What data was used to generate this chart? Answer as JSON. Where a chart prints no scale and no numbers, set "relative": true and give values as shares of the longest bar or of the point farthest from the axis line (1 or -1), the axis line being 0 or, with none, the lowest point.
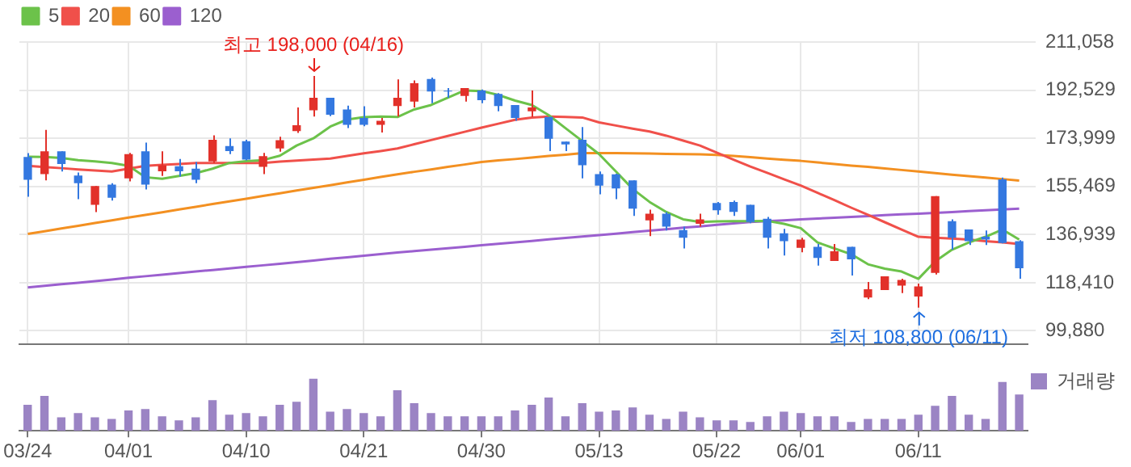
{
  "chart_data": [
    {
      "type": "candlestick",
      "categories": [
        null,
        null,
        null,
        null,
        null,
        null,
        null,
        null,
        null,
        null,
        null,
        null,
        null,
        null,
        null,
        null,
        null,
        null,
        null,
        null,
        null,
        null,
        null,
        null,
        null,
        null,
        null,
        null,
        null,
        null,
        null,
        null,
        null,
        null,
        null,
        null,
        null,
        null,
        null,
        null,
        null,
        null,
        null,
        null,
        null,
        null,
        null,
        null,
        null,
        null,
        null,
        null,
        null,
        null,
        null,
        null,
        null,
        null,
        null,
        null
      ],
      "ohlc": [
        [
          166800,
          168300,
          151500,
          158000
        ],
        [
          160200,
          177200,
          157800,
          169000
        ],
        [
          169000,
          169000,
          161200,
          164100
        ],
        [
          159700,
          160800,
          150600,
          156700
        ],
        [
          148400,
          155600,
          145600,
          155600
        ],
        [
          156200,
          156700,
          150000,
          151100
        ],
        [
          158600,
          168400,
          157400,
          167900
        ],
        [
          169000,
          172300,
          154300,
          156200
        ],
        [
          161300,
          169000,
          159500,
          163600
        ],
        [
          163200,
          166000,
          159300,
          161300
        ],
        [
          162300,
          164900,
          156700,
          158000
        ],
        [
          165100,
          175100,
          164500,
          173400
        ],
        [
          171000,
          174000,
          167900,
          169100
        ],
        [
          172900,
          173400,
          165500,
          165800
        ],
        [
          163000,
          168400,
          160200,
          167100
        ],
        [
          170100,
          174600,
          168800,
          173300
        ],
        [
          176800,
          185900,
          176100,
          179000
        ],
        [
          184800,
          198000,
          182400,
          189600
        ],
        [
          189600,
          189600,
          182500,
          183100
        ],
        [
          185100,
          186600,
          177900,
          179200
        ],
        [
          181800,
          186300,
          178600,
          179200
        ],
        [
          179200,
          181800,
          176200,
          180700
        ],
        [
          186400,
          196700,
          182400,
          189600
        ],
        [
          188100,
          196300,
          185900,
          195200
        ],
        [
          196800,
          197400,
          187500,
          192000
        ],
        [
          192300,
          193300,
          189600,
          192000
        ],
        [
          190300,
          193300,
          188100,
          193300
        ],
        [
          192400,
          192800,
          187500,
          188700
        ],
        [
          191100,
          191400,
          184400,
          186400
        ],
        [
          186800,
          186800,
          180700,
          181800
        ],
        [
          184400,
          192400,
          182200,
          185900
        ],
        [
          182200,
          182200,
          169100,
          173800
        ],
        [
          172700,
          172700,
          169100,
          171600
        ],
        [
          173400,
          178300,
          158600,
          163600
        ],
        [
          160200,
          161200,
          152400,
          155800
        ],
        [
          160100,
          160400,
          150600,
          154700
        ],
        [
          157800,
          157800,
          144100,
          146900
        ],
        [
          142400,
          146500,
          136300,
          145000
        ],
        [
          145000,
          145600,
          138500,
          140000
        ],
        [
          138700,
          140000,
          131600,
          135700
        ],
        [
          141100,
          145000,
          140000,
          142800
        ],
        [
          149100,
          149500,
          144600,
          146300
        ],
        [
          149500,
          150000,
          144100,
          145700
        ],
        [
          148400,
          148400,
          141300,
          141800
        ],
        [
          143000,
          143700,
          131600,
          135700
        ],
        [
          137400,
          139100,
          128900,
          134400
        ],
        [
          131800,
          135700,
          130100,
          135000
        ],
        [
          132200,
          133300,
          125000,
          127900
        ],
        [
          126800,
          133300,
          126800,
          130500
        ],
        [
          132200,
          132200,
          121200,
          127400
        ],
        [
          112700,
          118700,
          112100,
          115900
        ],
        [
          115600,
          120900,
          115600,
          120900
        ],
        [
          117300,
          119900,
          114400,
          119500
        ],
        [
          113100,
          118100,
          108800,
          117000
        ],
        [
          122200,
          151700,
          121600,
          151700
        ],
        [
          142100,
          142800,
          131100,
          135700
        ],
        [
          138900,
          138900,
          132900,
          134400
        ],
        [
          136100,
          138500,
          132900,
          135000
        ],
        [
          158200,
          158900,
          133500,
          133700
        ],
        [
          134400,
          134800,
          119900,
          124000
        ]
      ],
      "colors": [
        "#3478e0",
        "#e2312a",
        "#3478e0",
        "#3478e0",
        "#e2312a",
        "#3478e0",
        "#e2312a",
        "#3478e0",
        "#e2312a",
        "#3478e0",
        "#3478e0",
        "#e2312a",
        "#3478e0",
        "#3478e0",
        "#e2312a",
        "#e2312a",
        "#e2312a",
        "#e2312a",
        "#3478e0",
        "#3478e0",
        "#3478e0",
        "#e2312a",
        "#e2312a",
        "#e2312a",
        "#3478e0",
        "#3478e0",
        "#e2312a",
        "#3478e0",
        "#3478e0",
        "#3478e0",
        "#e2312a",
        "#3478e0",
        "#3478e0",
        "#3478e0",
        "#3478e0",
        "#3478e0",
        "#3478e0",
        "#e2312a",
        "#3478e0",
        "#3478e0",
        "#e2312a",
        "#3478e0",
        "#3478e0",
        "#3478e0",
        "#3478e0",
        "#3478e0",
        "#e2312a",
        "#3478e0",
        "#e2312a",
        "#3478e0",
        "#e2312a",
        "#e2312a",
        "#e2312a",
        "#e2312a",
        "#e2312a",
        "#3478e0",
        "#3478e0",
        "#3478e0",
        "#3478e0",
        "#3478e0"
      ],
      "series": [
        {
          "name": "5",
          "type": "line",
          "color": "#6cc24a",
          "values": [
            166900,
            166800,
            166400,
            165600,
            165100,
            164500,
            163400,
            159000,
            158400,
            159500,
            160600,
            162300,
            164500,
            165200,
            165600,
            167300,
            171200,
            174000,
            178500,
            181200,
            182100,
            182400,
            182200,
            185100,
            186800,
            189600,
            192400,
            192200,
            190700,
            188500,
            186800,
            182900,
            177900,
            172900,
            167900,
            161200,
            154500,
            149500,
            145600,
            142800,
            141800,
            142000,
            142100,
            142100,
            142200,
            141100,
            139400,
            133900,
            131600,
            129400,
            125500,
            123800,
            122700,
            119900,
            126600,
            131100,
            133900,
            136100,
            138900,
            135000
          ]
        },
        {
          "name": "20",
          "type": "line",
          "color": "#f0504a",
          "values": [
            163400,
            162900,
            162500,
            162000,
            161600,
            161200,
            162300,
            163400,
            163800,
            164100,
            164500,
            164500,
            164500,
            164500,
            164500,
            165000,
            165400,
            165800,
            166200,
            167200,
            168200,
            169100,
            170100,
            171700,
            173300,
            174900,
            176500,
            178100,
            179600,
            181100,
            182000,
            182400,
            182200,
            182000,
            180100,
            178900,
            177700,
            176600,
            175000,
            173100,
            171200,
            168500,
            165800,
            163100,
            160700,
            158200,
            155800,
            153000,
            150200,
            147300,
            144500,
            141700,
            138900,
            136100,
            135700,
            135400,
            135000,
            134400,
            133900,
            133300
          ]
        },
        {
          "name": "60",
          "type": "line",
          "color": "#f39021",
          "values": [
            137200,
            138200,
            139300,
            140300,
            141400,
            142400,
            143500,
            144500,
            145500,
            146600,
            147600,
            148700,
            149700,
            150700,
            151800,
            152800,
            153900,
            154900,
            155900,
            157000,
            158000,
            159100,
            160100,
            161100,
            162000,
            163000,
            163900,
            164900,
            165500,
            166000,
            166600,
            167200,
            167700,
            168300,
            168300,
            168300,
            168200,
            168100,
            168000,
            167900,
            167800,
            167600,
            167200,
            166700,
            166200,
            165700,
            165300,
            164700,
            164100,
            163500,
            163000,
            162400,
            161800,
            161200,
            160600,
            160000,
            159400,
            158900,
            158300,
            157700
          ]
        },
        {
          "name": "120",
          "type": "line",
          "color": "#9b5fcf",
          "values": [
            116600,
            117200,
            117800,
            118400,
            119000,
            119600,
            120300,
            120900,
            121500,
            122100,
            122700,
            123300,
            123900,
            124500,
            125100,
            125700,
            126300,
            126900,
            127600,
            128200,
            128800,
            129400,
            130000,
            130600,
            131100,
            131700,
            132200,
            132800,
            133400,
            133900,
            134500,
            135100,
            135600,
            136200,
            136700,
            137300,
            137900,
            138400,
            139000,
            139600,
            140100,
            140700,
            141200,
            141800,
            142100,
            142400,
            142800,
            143100,
            143400,
            143700,
            144000,
            144400,
            144700,
            145000,
            145300,
            145600,
            146000,
            146300,
            146600,
            146900
          ]
        }
      ],
      "ylim": [
        94860,
        211058
      ],
      "yticks": [
        {
          "value": 99880,
          "label": "99,880"
        },
        {
          "value": 118410,
          "label": "118,410"
        },
        {
          "value": 136939,
          "label": "136,939"
        },
        {
          "value": 155469,
          "label": "155,469"
        },
        {
          "value": 173999,
          "label": "173,999"
        },
        {
          "value": 192529,
          "label": "192,529"
        },
        {
          "value": 211058,
          "label": "211,058"
        }
      ],
      "grid": true,
      "legend": "top left",
      "tick_labels": "y",
      "marker": "none",
      "annotations": [
        {
          "text": "최고 198,000 (04/16)",
          "y": 198000
        },
        {
          "text": "최저 108,800 (06/11)",
          "y": 108800
        }
      ]
    },
    {
      "type": "bar",
      "relative": true,
      "categories": [
        "03/24",
        null,
        null,
        null,
        null,
        null,
        "04/01",
        null,
        null,
        null,
        null,
        null,
        null,
        "04/10",
        null,
        null,
        null,
        null,
        null,
        null,
        "04/21",
        null,
        null,
        null,
        null,
        null,
        null,
        "04/30",
        null,
        null,
        null,
        null,
        null,
        null,
        "05/13",
        null,
        null,
        null,
        null,
        null,
        null,
        "05/22",
        null,
        null,
        null,
        null,
        "06/01",
        null,
        null,
        null,
        null,
        null,
        null,
        "06/11",
        null,
        null,
        null,
        null,
        null,
        null
      ],
      "series": [
        {
          "name": "거래량",
          "color": "#9b84c4",
          "values": [
            0.5,
            0.67,
            0.26,
            0.34,
            0.26,
            0.23,
            0.39,
            0.42,
            0.28,
            0.2,
            0.26,
            0.59,
            0.31,
            0.34,
            0.28,
            0.5,
            0.56,
            1,
            0.37,
            0.42,
            0.34,
            0.28,
            0.78,
            0.53,
            0.34,
            0.28,
            0.28,
            0.28,
            0.28,
            0.39,
            0.5,
            0.64,
            0.28,
            0.53,
            0.37,
            0.39,
            0.45,
            0.31,
            0.23,
            0.37,
            0.26,
            0.2,
            0.2,
            0.17,
            0.28,
            0.37,
            0.34,
            0.28,
            0.28,
            0.17,
            0.23,
            0.23,
            0.23,
            0.31,
            0.48,
            0.67,
            0.31,
            0.23,
            0.94,
            0.7
          ]
        }
      ],
      "legend": "right",
      "tick_labels": "x",
      "grid": false
    }
  ]
}
